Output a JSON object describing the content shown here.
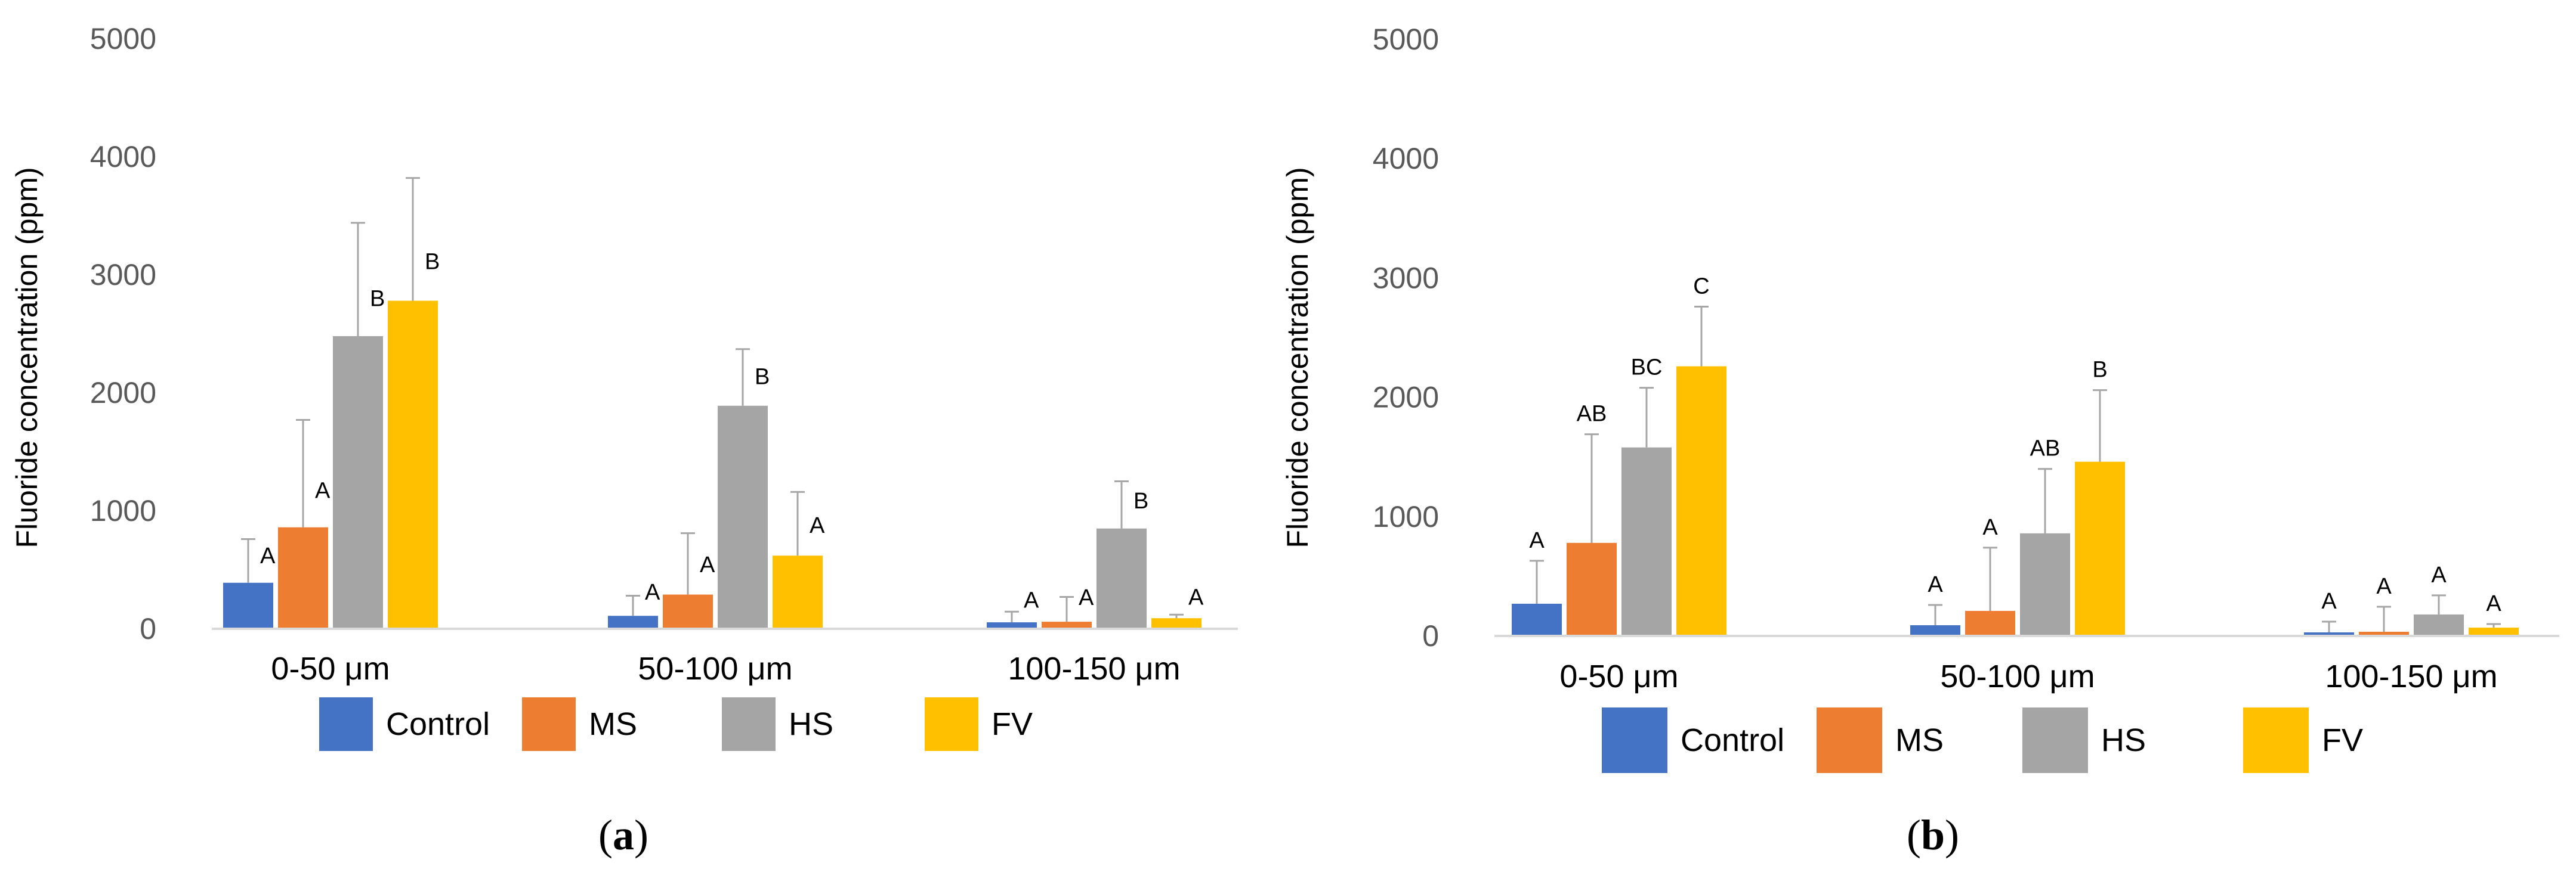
{
  "chart_data": [
    {
      "panel": "(a)",
      "panel_label": {
        "open": "(",
        "letter": "a",
        "close": ")"
      },
      "type": "bar",
      "title": "",
      "ylabel": "Fluoride concentration (ppm)",
      "xlabel": "",
      "ylim": [
        0,
        5000
      ],
      "yticks": [
        0,
        1000,
        2000,
        3000,
        4000,
        5000
      ],
      "ytick_labels": [
        "0",
        "1000",
        "2000",
        "3000",
        "4000",
        "5000"
      ],
      "grid": false,
      "legend_position": "bottom",
      "categories": [
        "0-50 μm",
        "50-100 μm",
        "100-150 μm"
      ],
      "series": [
        {
          "name": "Control",
          "color": "#4472c4",
          "values": [
            390,
            110,
            55
          ],
          "errors": [
            370,
            170,
            90
          ],
          "sig": [
            "A",
            "A",
            "A"
          ]
        },
        {
          "name": "MS",
          "color": "#ed7d31",
          "values": [
            860,
            290,
            60
          ],
          "errors": [
            910,
            520,
            210
          ],
          "sig": [
            "A",
            "A",
            "A"
          ]
        },
        {
          "name": "HS",
          "color": "#a5a5a5",
          "values": [
            2480,
            1890,
            850
          ],
          "errors": [
            960,
            480,
            400
          ],
          "sig": [
            "B",
            "B",
            "B"
          ]
        },
        {
          "name": "FV",
          "color": "#ffc000",
          "values": [
            2780,
            620,
            90
          ],
          "errors": [
            1040,
            540,
            30
          ],
          "sig": [
            "B",
            "A",
            "A"
          ]
        }
      ]
    },
    {
      "panel": "(b)",
      "panel_label": {
        "open": "(",
        "letter": "b",
        "close": ")"
      },
      "type": "bar",
      "title": "",
      "ylabel": "Fluoride concentration (ppm)",
      "xlabel": "",
      "ylim": [
        0,
        5000
      ],
      "yticks": [
        0,
        1000,
        2000,
        3000,
        4000,
        5000
      ],
      "ytick_labels": [
        "0",
        "1000",
        "2000",
        "3000",
        "4000",
        "5000"
      ],
      "grid": false,
      "legend_position": "bottom",
      "categories": [
        "0-50 μm",
        "50-100 μm",
        "100-150 μm"
      ],
      "series": [
        {
          "name": "Control",
          "color": "#4472c4",
          "values": [
            270,
            90,
            30
          ],
          "errors": [
            360,
            170,
            90
          ],
          "sig": [
            "A",
            "A",
            "A"
          ]
        },
        {
          "name": "MS",
          "color": "#ed7d31",
          "values": [
            780,
            210,
            35
          ],
          "errors": [
            910,
            530,
            210
          ],
          "sig": [
            "AB",
            "A",
            "A"
          ]
        },
        {
          "name": "HS",
          "color": "#a5a5a5",
          "values": [
            1580,
            860,
            180
          ],
          "errors": [
            500,
            540,
            160
          ],
          "sig": [
            "BC",
            "AB",
            "A"
          ]
        },
        {
          "name": "FV",
          "color": "#ffc000",
          "values": [
            2260,
            1460,
            70
          ],
          "errors": [
            500,
            600,
            30
          ],
          "sig": [
            "C",
            "B",
            "A"
          ]
        }
      ]
    }
  ]
}
